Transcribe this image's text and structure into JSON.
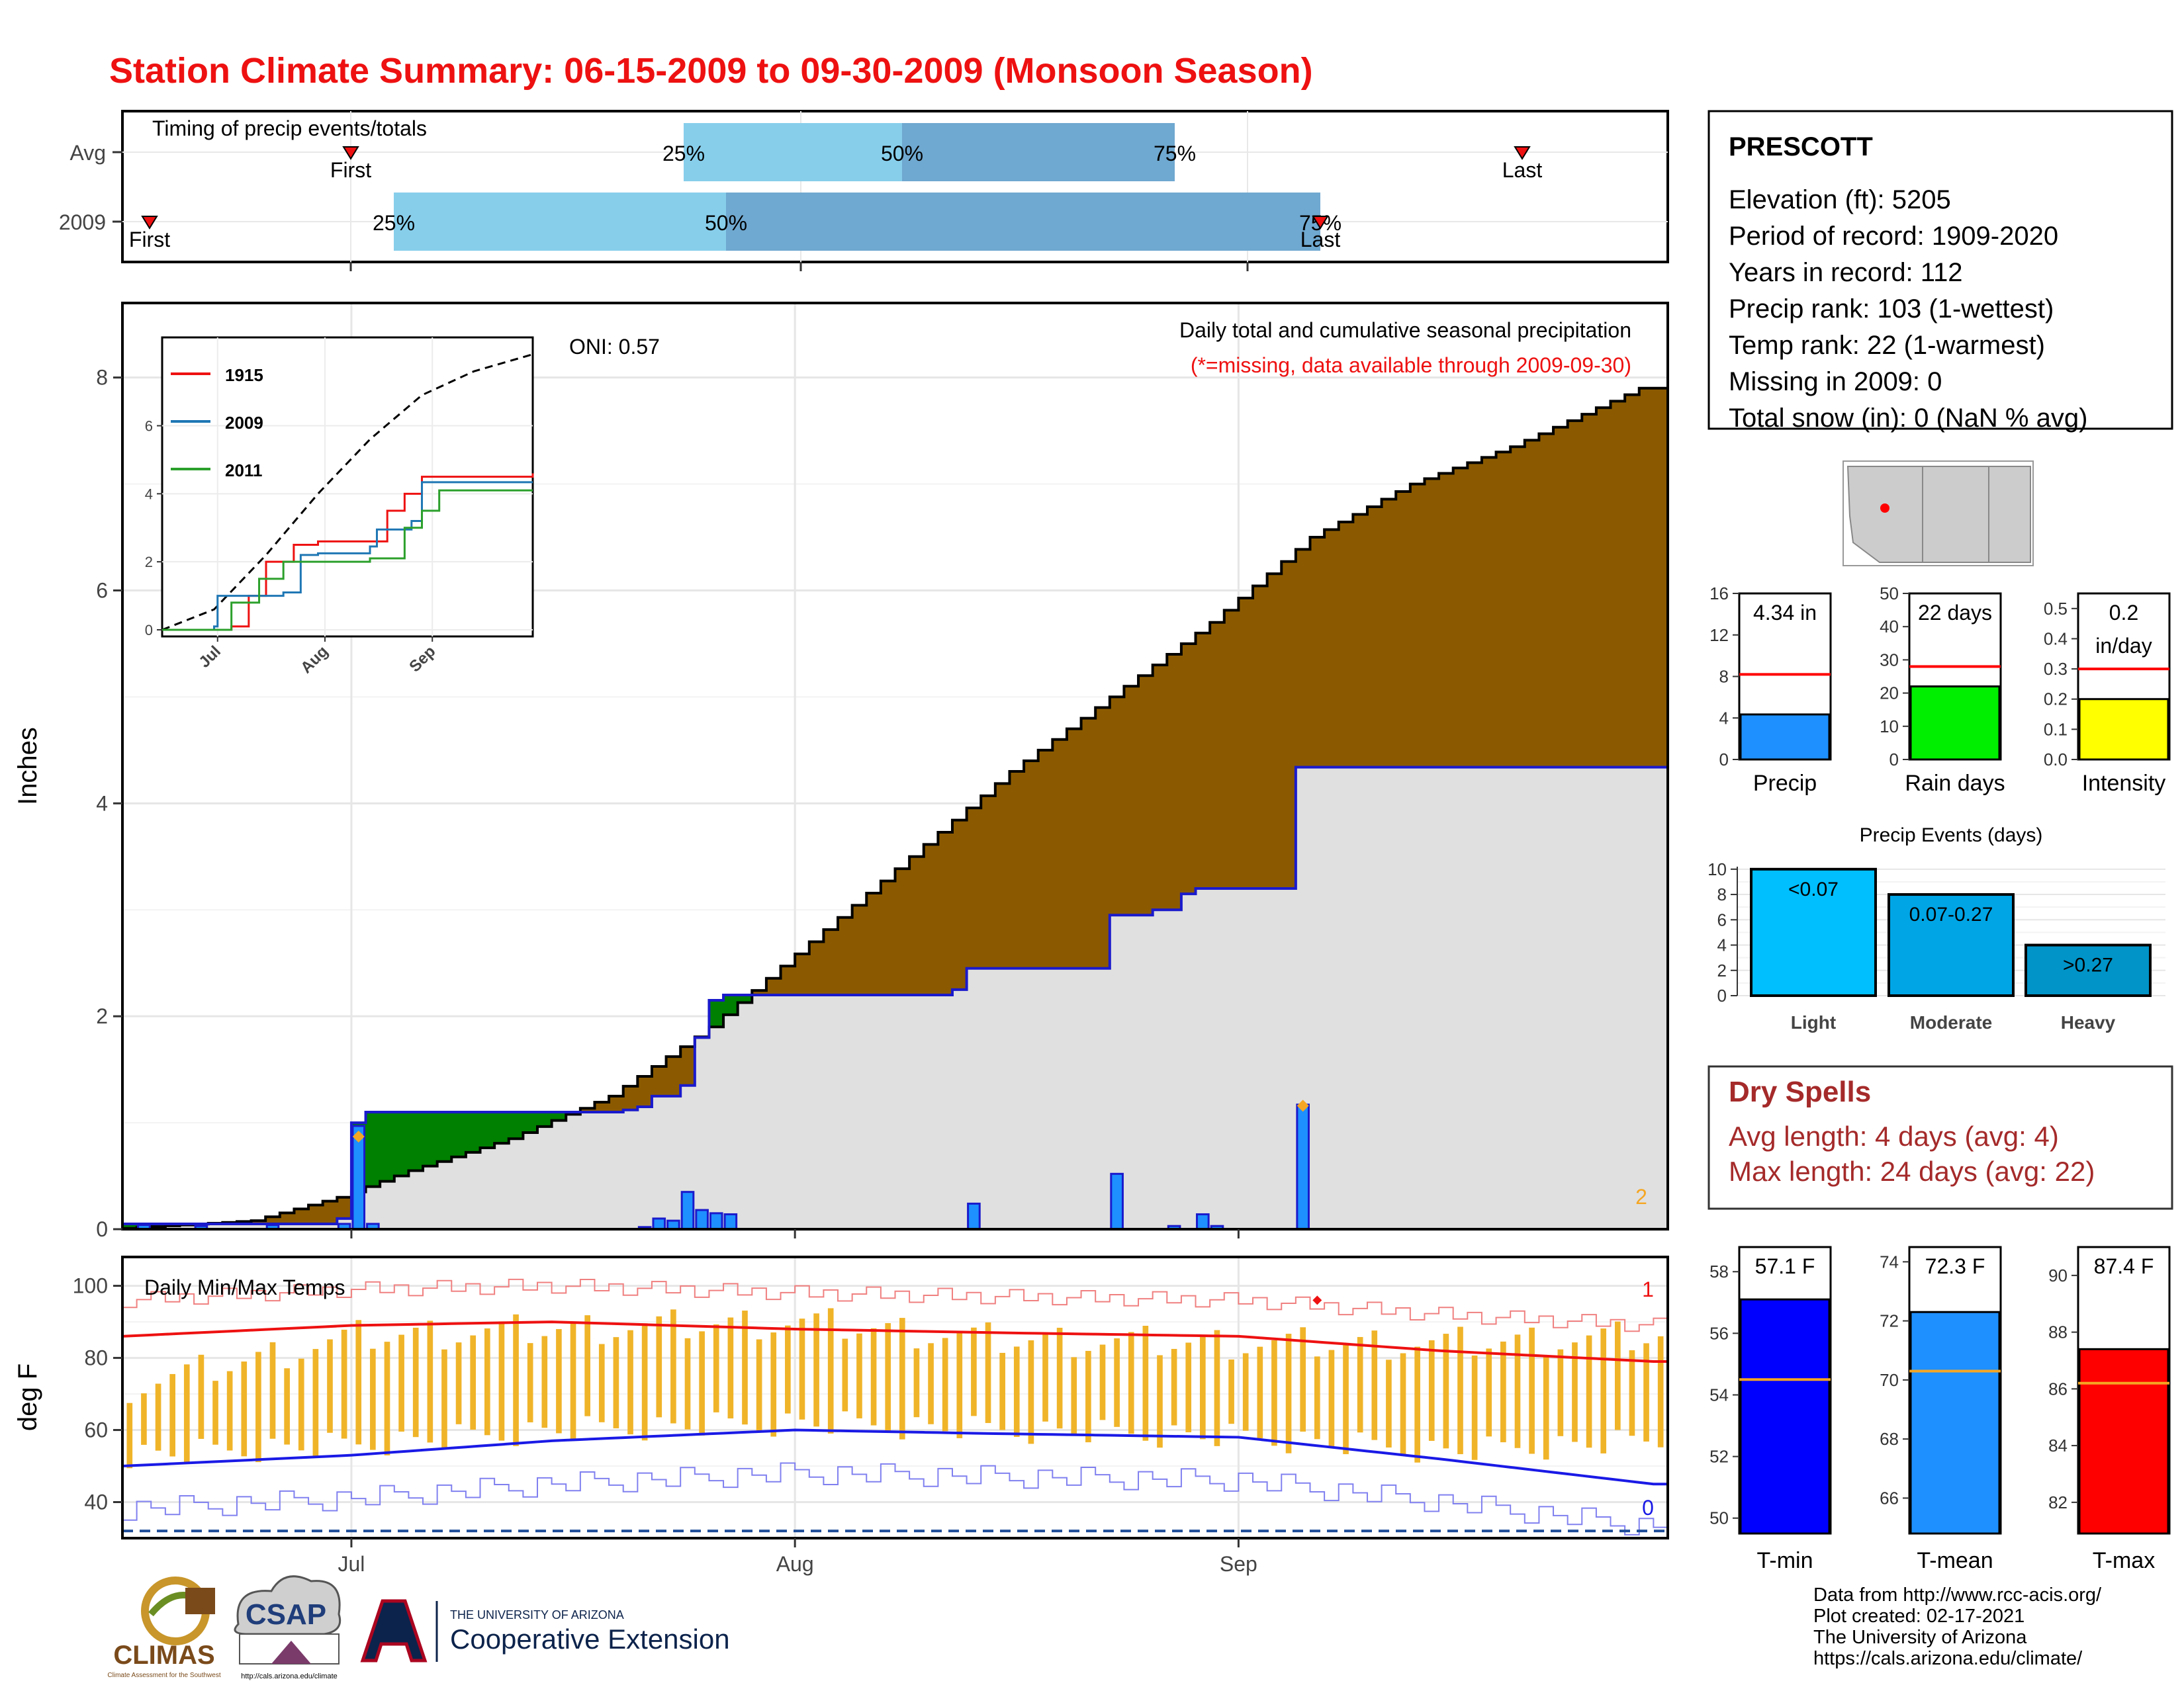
{
  "title": "Station Climate Summary: 06-15-2009 to 09-30-2009 (Monsoon Season)",
  "colors": {
    "title": "#ee1111",
    "cumulative_fill": "#8b5a00",
    "avg_fill": "#e0e0e0",
    "deficit_fill": "#008000",
    "daily_bar": "#1e90ff",
    "temp_bar": "#f0b429",
    "tmax_line": "#ee1111",
    "tmin_line": "#1a1ae6",
    "dry_spell_text": "#a52a2a"
  },
  "timing": {
    "label": "Timing of precip events/totals",
    "rows": [
      "Avg",
      "2009"
    ],
    "first_label": "First",
    "last_label": "Last",
    "pct_labels": [
      "25%",
      "50%",
      "75%"
    ]
  },
  "main": {
    "ylabel": "Inches",
    "oni_label": "ONI: 0.57",
    "desc": "Daily total and cumulative seasonal precipitation",
    "missing_note": "(*=missing, data available through 2009-09-30)",
    "corner_count": "2",
    "y_ticks": [
      "0",
      "2",
      "4",
      "6",
      "8"
    ]
  },
  "inset": {
    "legend": [
      "1915",
      "2009",
      "2011"
    ],
    "y_ticks": [
      "0",
      "2",
      "4",
      "6"
    ],
    "x_ticks": [
      "Jul",
      "Aug",
      "Sep"
    ]
  },
  "temps": {
    "label": "Daily Min/Max Temps",
    "ylabel": "deg F",
    "y_ticks": [
      "40",
      "60",
      "80",
      "100"
    ],
    "count_high": "1",
    "count_low": "0"
  },
  "x_ticks": [
    "Jul",
    "Aug",
    "Sep"
  ],
  "station": {
    "name": "PRESCOTT",
    "lines": [
      "Elevation (ft): 5205",
      "Period of record: 1909-2020",
      "Years in record: 112",
      "Precip rank: 103 (1-wettest)",
      "Temp rank: 22 (1-warmest)",
      "Missing in 2009: 0",
      "Total snow (in): 0 (NaN % avg)"
    ]
  },
  "mini_bars": [
    {
      "label": "4.34 in",
      "xlabel": "Precip",
      "value": 4.34,
      "avg": 8.2,
      "ymax": 16,
      "ticks": [
        "0",
        "4",
        "8",
        "12",
        "16"
      ],
      "color": "#1e90ff"
    },
    {
      "label": "22 days",
      "xlabel": "Rain days",
      "value": 22,
      "avg": 28,
      "ymax": 50,
      "ticks": [
        "0",
        "10",
        "20",
        "30",
        "40",
        "50"
      ],
      "color": "#00ee00"
    },
    {
      "label": "0.2 in/day",
      "label_lines": [
        "0.2",
        "in/day"
      ],
      "xlabel": "Intensity",
      "value": 0.2,
      "avg": 0.3,
      "ymax": 0.55,
      "ticks": [
        "0.0",
        "0.1",
        "0.2",
        "0.3",
        "0.4",
        "0.5"
      ],
      "color": "#ffff00"
    }
  ],
  "events": {
    "title": "Precip Events (days)",
    "categories": [
      "Light",
      "Moderate",
      "Heavy"
    ],
    "bar_labels": [
      "<0.07",
      "0.07-0.27",
      ">0.27"
    ],
    "values": [
      10,
      8,
      4
    ],
    "ticks": [
      "0",
      "2",
      "4",
      "6",
      "8",
      "10"
    ],
    "colors": [
      "#00bfff",
      "#00a5e6",
      "#0094c8"
    ]
  },
  "dry_spells": {
    "title": "Dry Spells",
    "avg": "Avg length: 4 days (avg: 4)",
    "max": "Max length: 24 days (avg: 22)"
  },
  "temp_bars": [
    {
      "label": "57.1 F",
      "xlabel": "T-min",
      "value": 57.1,
      "avg": 54.5,
      "ymin": 49.5,
      "ymax": 58.8,
      "ticks": [
        "50",
        "52",
        "54",
        "56",
        "58"
      ],
      "color": "#0000ff"
    },
    {
      "label": "72.3 F",
      "xlabel": "T-mean",
      "value": 72.3,
      "avg": 70.3,
      "ymin": 64.8,
      "ymax": 74.5,
      "ticks": [
        "66",
        "68",
        "70",
        "72",
        "74"
      ],
      "color": "#1e90ff"
    },
    {
      "label": "87.4 F",
      "xlabel": "T-max",
      "value": 87.4,
      "avg": 86.2,
      "ymin": 80.9,
      "ymax": 91.0,
      "ticks": [
        "82",
        "84",
        "86",
        "88",
        "90"
      ],
      "color": "#ff0000"
    }
  ],
  "credits": [
    "Data from http://www.rcc-acis.org/",
    "Plot created: 02-17-2021",
    "The University of Arizona",
    "https://cals.arizona.edu/climate/"
  ],
  "logos": {
    "climas": "CLIMAS",
    "climas_sub": "Climate Assessment for the Southwest",
    "csap": "CSAP",
    "csap_url": "http://cals.arizona.edu/climate",
    "ua_small": "THE UNIVERSITY OF ARIZONA",
    "ua_big": "Cooperative Extension"
  },
  "chart_data": [
    {
      "type": "area",
      "title": "Daily total and cumulative seasonal precipitation",
      "ylabel": "Inches",
      "x_range": [
        "2009-06-15",
        "2009-09-30"
      ],
      "ylim": [
        0,
        8.7
      ],
      "x_ticks": [
        "Jul",
        "Aug",
        "Sep"
      ],
      "avg_cumulative": {
        "dates": [
          "06-15",
          "06-25",
          "07-01",
          "07-06",
          "07-13",
          "07-20",
          "07-27",
          "08-03",
          "08-10",
          "08-17",
          "08-24",
          "08-31",
          "09-07",
          "09-14",
          "09-21",
          "09-30"
        ],
        "values": [
          0.0,
          0.08,
          0.3,
          0.55,
          0.85,
          1.25,
          1.9,
          2.7,
          3.5,
          4.3,
          5.0,
          5.7,
          6.5,
          7.0,
          7.35,
          7.9
        ]
      },
      "cumulative_2009": {
        "dates": [
          "06-15",
          "06-30",
          "07-01",
          "07-02",
          "07-20",
          "07-21",
          "07-22",
          "07-24",
          "07-25",
          "07-26",
          "07-27",
          "08-12",
          "08-13",
          "08-22",
          "08-23",
          "08-26",
          "08-28",
          "08-29",
          "09-04",
          "09-05",
          "09-30"
        ],
        "values": [
          0.05,
          0.1,
          1.0,
          1.1,
          1.12,
          1.15,
          1.25,
          1.35,
          1.8,
          2.15,
          2.2,
          2.25,
          2.45,
          2.45,
          2.95,
          3.0,
          3.15,
          3.2,
          3.2,
          4.34,
          4.34
        ]
      },
      "daily_2009": {
        "dates": [
          "06-16",
          "06-20",
          "06-25",
          "06-30",
          "07-01",
          "07-02",
          "07-21",
          "07-22",
          "07-23",
          "07-24",
          "07-25",
          "07-26",
          "07-27",
          "08-13",
          "08-23",
          "08-27",
          "08-29",
          "08-30",
          "09-05"
        ],
        "values": [
          0.04,
          0.03,
          0.04,
          0.05,
          0.97,
          0.05,
          0.02,
          0.1,
          0.08,
          0.35,
          0.18,
          0.15,
          0.14,
          0.24,
          0.52,
          0.03,
          0.14,
          0.03,
          1.17
        ]
      },
      "missing_markers": {
        "dates": [
          "07-01",
          "09-05"
        ],
        "values": [
          0.87,
          1.16
        ]
      }
    },
    {
      "type": "line",
      "title": "",
      "legend": [
        "1915",
        "2009",
        "2011"
      ],
      "ylim": [
        0,
        7
      ],
      "x_ticks": [
        "Jul",
        "Aug",
        "Sep"
      ],
      "avg_series": {
        "x_day": [
          0,
          15,
          30,
          45,
          60,
          75,
          90,
          107
        ],
        "values": [
          0,
          0.6,
          2.2,
          4.0,
          5.6,
          6.9,
          7.6,
          8.1
        ]
      },
      "series": [
        {
          "name": "1915",
          "x_day": [
            0,
            20,
            25,
            30,
            38,
            45,
            55,
            65,
            70,
            75,
            80,
            90,
            107
          ],
          "values": [
            0,
            0.1,
            1.0,
            2.0,
            2.5,
            2.6,
            2.6,
            3.5,
            4.0,
            4.5,
            4.5,
            4.5,
            4.6
          ]
        },
        {
          "name": "2009",
          "x_day": [
            0,
            15,
            16,
            35,
            40,
            45,
            60,
            62,
            72,
            75,
            80,
            90,
            107
          ],
          "values": [
            0,
            0.1,
            1.0,
            1.1,
            2.2,
            2.25,
            2.45,
            2.95,
            3.2,
            4.34,
            4.34,
            4.34,
            4.34
          ]
        },
        {
          "name": "2011",
          "x_day": [
            0,
            20,
            28,
            35,
            45,
            60,
            70,
            75,
            80,
            85,
            107
          ],
          "values": [
            0,
            0.8,
            1.5,
            2.0,
            2.0,
            2.1,
            3.0,
            3.5,
            4.1,
            4.1,
            4.1
          ]
        }
      ]
    },
    {
      "type": "bar",
      "title": "Daily Min/Max Temps",
      "ylabel": "deg F",
      "ylim": [
        30,
        108
      ],
      "tmax_sample": {
        "dates": [
          "06-15",
          "07-01",
          "07-15",
          "08-01",
          "08-15",
          "09-01",
          "09-15",
          "09-30"
        ],
        "values": [
          72,
          86,
          88,
          90,
          85,
          84,
          84,
          86
        ]
      },
      "tmin_sample": {
        "dates": [
          "06-15",
          "07-01",
          "07-15",
          "08-01",
          "08-15",
          "09-01",
          "09-15",
          "09-30"
        ],
        "values": [
          53,
          56,
          60,
          62,
          60,
          58,
          54,
          57
        ]
      },
      "avg_tmax": {
        "dates": [
          "06-15",
          "07-01",
          "07-15",
          "08-01",
          "08-15",
          "09-01",
          "09-15",
          "09-30"
        ],
        "values": [
          86,
          89,
          90,
          88,
          87,
          86,
          82,
          79
        ]
      },
      "avg_tmin": {
        "dates": [
          "06-15",
          "07-01",
          "07-15",
          "08-01",
          "08-15",
          "09-01",
          "09-15",
          "09-30"
        ],
        "values": [
          50,
          53,
          57,
          60,
          59,
          58,
          52,
          45
        ]
      },
      "freeze_line": 32
    },
    {
      "type": "bar",
      "title": "Precip Events (days)",
      "categories": [
        "Light",
        "Moderate",
        "Heavy"
      ],
      "values": [
        10,
        8,
        4
      ],
      "ylim": [
        0,
        10.2
      ]
    }
  ]
}
